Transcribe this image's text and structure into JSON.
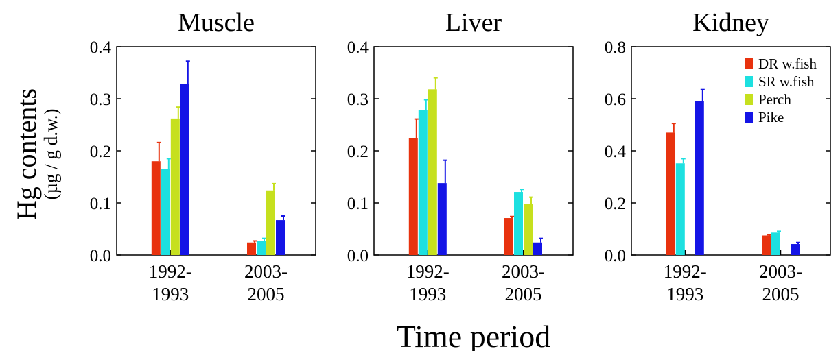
{
  "figure": {
    "ylabel_main": "Hg contents",
    "ylabel_unit": "(µg / g d.w.)",
    "xlabel": "Time period"
  },
  "legend": {
    "placement": "top-right of Kidney panel",
    "entries": [
      {
        "name": "DR w.fish",
        "color": "#e8320e"
      },
      {
        "name": "SR w.fish",
        "color": "#1de0e0"
      },
      {
        "name": "Perch",
        "color": "#c6e01e"
      },
      {
        "name": "Pike",
        "color": "#1414e6"
      }
    ]
  },
  "chart_data": [
    {
      "type": "bar",
      "title": "Muscle",
      "categories": [
        [
          "1992-",
          "1993"
        ],
        [
          "2003-",
          "2005"
        ]
      ],
      "ylim": [
        0,
        0.4
      ],
      "yticks": [
        "0.0",
        "0.1",
        "0.2",
        "0.3",
        "0.4"
      ],
      "series": [
        {
          "name": "DR w.fish",
          "values": [
            0.18,
            0.024
          ],
          "errors": [
            0.036,
            0.003
          ]
        },
        {
          "name": "SR w.fish",
          "values": [
            0.165,
            0.027
          ],
          "errors": [
            0.02,
            0.005
          ]
        },
        {
          "name": "Perch",
          "values": [
            0.262,
            0.124
          ],
          "errors": [
            0.022,
            0.013
          ]
        },
        {
          "name": "Pike",
          "values": [
            0.328,
            0.067
          ],
          "errors": [
            0.044,
            0.008
          ]
        }
      ]
    },
    {
      "type": "bar",
      "title": "Liver",
      "categories": [
        [
          "1992-",
          "1993"
        ],
        [
          "2003-",
          "2005"
        ]
      ],
      "ylim": [
        0,
        0.4
      ],
      "yticks": [
        "0.0",
        "0.1",
        "0.2",
        "0.3",
        "0.4"
      ],
      "series": [
        {
          "name": "DR w.fish",
          "values": [
            0.225,
            0.071
          ],
          "errors": [
            0.036,
            0.003
          ]
        },
        {
          "name": "SR w.fish",
          "values": [
            0.278,
            0.121
          ],
          "errors": [
            0.02,
            0.005
          ]
        },
        {
          "name": "Perch",
          "values": [
            0.318,
            0.098
          ],
          "errors": [
            0.022,
            0.013
          ]
        },
        {
          "name": "Pike",
          "values": [
            0.138,
            0.024
          ],
          "errors": [
            0.044,
            0.008
          ]
        }
      ]
    },
    {
      "type": "bar",
      "title": "Kidney",
      "categories": [
        [
          "1992-",
          "1993"
        ],
        [
          "2003-",
          "2005"
        ]
      ],
      "ylim": [
        0,
        0.8
      ],
      "yticks": [
        "0.0",
        "0.2",
        "0.4",
        "0.6",
        "0.8"
      ],
      "series": [
        {
          "name": "DR w.fish",
          "values": [
            0.47,
            0.075
          ],
          "errors": [
            0.035,
            0.003
          ]
        },
        {
          "name": "SR w.fish",
          "values": [
            0.352,
            0.086
          ],
          "errors": [
            0.018,
            0.005
          ]
        },
        {
          "name": "Perch",
          "values": [
            null,
            null
          ],
          "errors": [
            null,
            null
          ]
        },
        {
          "name": "Pike",
          "values": [
            0.59,
            0.042
          ],
          "errors": [
            0.045,
            0.006
          ]
        }
      ]
    }
  ]
}
